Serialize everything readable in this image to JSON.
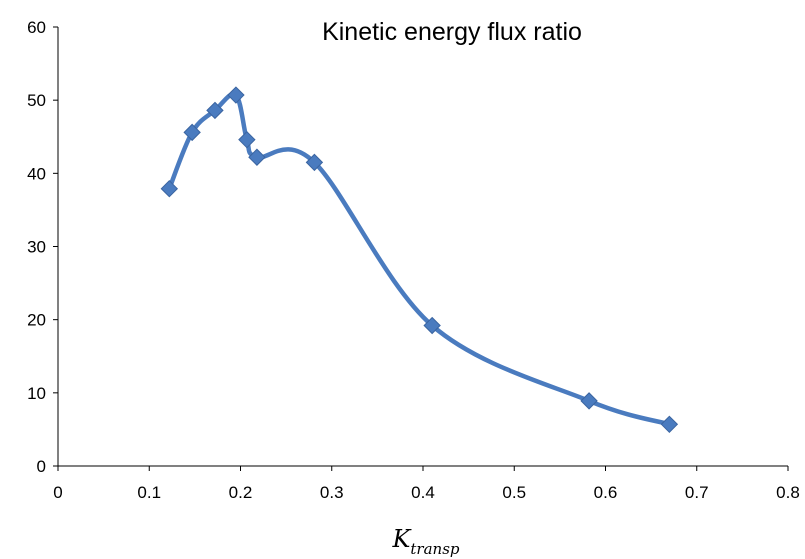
{
  "chart_data": {
    "type": "line",
    "title": "Kinetic energy flux ratio",
    "xlabel": "K",
    "xlabel_subscript": "transp",
    "ylabel": "",
    "xlim": [
      0,
      0.8
    ],
    "ylim": [
      0,
      60
    ],
    "x_ticks": [
      0,
      0.1,
      0.2,
      0.3,
      0.4,
      0.5,
      0.6,
      0.7,
      0.8
    ],
    "x_tick_labels": [
      "0",
      "0.1",
      "0.2",
      "0.3",
      "0.4",
      "0.5",
      "0.6",
      "0.7",
      "0.8"
    ],
    "y_ticks": [
      0,
      10,
      20,
      30,
      40,
      50,
      60
    ],
    "y_tick_labels": [
      "0",
      "10",
      "20",
      "30",
      "40",
      "50",
      "60"
    ],
    "grid": false,
    "legend": "none",
    "smooth": true,
    "series": [
      {
        "color": "#4a7bbf",
        "marker": "diamond",
        "x": [
          0.122,
          0.147,
          0.172,
          0.195,
          0.207,
          0.218,
          0.281,
          0.41,
          0.582,
          0.67
        ],
        "y": [
          37.9,
          45.6,
          48.6,
          50.7,
          44.6,
          42.2,
          41.5,
          19.2,
          8.9,
          5.7
        ]
      }
    ]
  }
}
